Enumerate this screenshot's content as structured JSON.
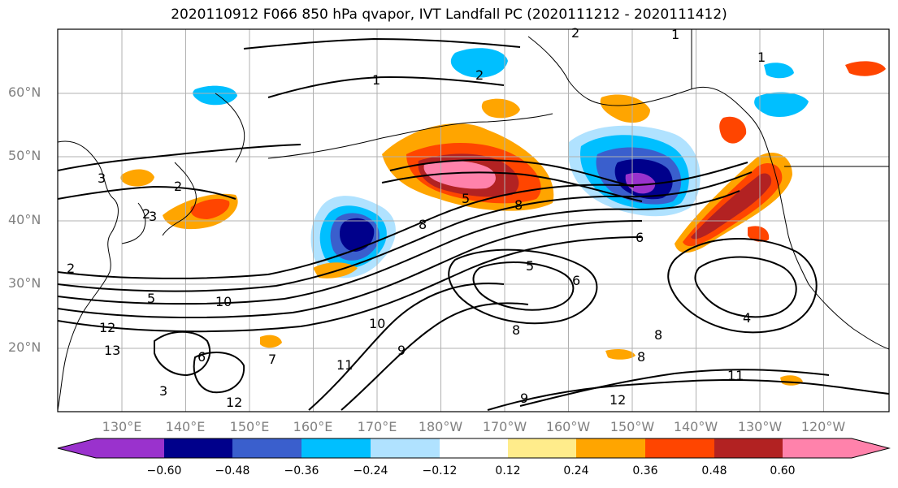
{
  "title": "2020110912 F066 850 hPa qvapor, IVT Landfall PC (2020111212 - 2020111412)",
  "lat_labels": [
    "60°N",
    "50°N",
    "40°N",
    "30°N",
    "20°N"
  ],
  "lon_labels": [
    "130°E",
    "140°E",
    "150°E",
    "160°E",
    "170°E",
    "180°W",
    "170°W",
    "160°W",
    "150°W",
    "140°W",
    "130°W",
    "120°W"
  ],
  "colorbar": {
    "ticks": [
      "−0.60",
      "−0.48",
      "−0.36",
      "−0.24",
      "−0.12",
      "0.12",
      "0.24",
      "0.36",
      "0.48",
      "0.60"
    ],
    "colors": [
      "#9a32cd",
      "#00008b",
      "#3a5fcd",
      "#00bfff",
      "#b0e2ff",
      "#ffffff",
      "#ffec8b",
      "#ffa500",
      "#ff4500",
      "#b22222",
      "#ff82ab"
    ]
  },
  "contour_labels": [
    "2",
    "1",
    "2",
    "1",
    "1",
    "3",
    "2",
    "2",
    "3",
    "2",
    "5",
    "8",
    "8",
    "5",
    "6",
    "6",
    "5",
    "4",
    "10",
    "12",
    "13",
    "6",
    "7",
    "11",
    "10",
    "9",
    "12",
    "8",
    "8",
    "8",
    "9",
    "12",
    "11",
    "3"
  ]
}
